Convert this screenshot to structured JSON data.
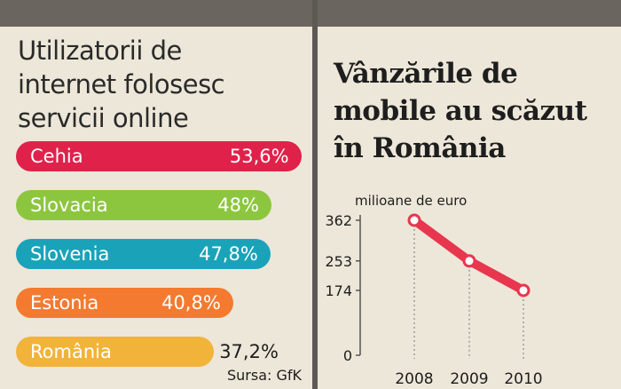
{
  "colors": {
    "background": "#ede7d9",
    "frame": "#5d5953",
    "line": "#e8364f"
  },
  "left_panel": {
    "title_lines": [
      "Utilizatorii de",
      "internet folosesc",
      "servicii online"
    ],
    "source": "Sursa: GfK"
  },
  "right_panel": {
    "title_lines": [
      "Vânzările de",
      "mobile au scăzut",
      "în România"
    ]
  },
  "chart_data": [
    {
      "type": "bar",
      "orientation": "horizontal",
      "categories": [
        "Cehia",
        "Slovacia",
        "Slovenia",
        "Estonia",
        "România"
      ],
      "values": [
        53.6,
        48,
        47.8,
        40.8,
        37.2
      ],
      "value_labels": [
        "53,6%",
        "48%",
        "47,8%",
        "40,8%",
        "37,2%"
      ],
      "colors": [
        "#e0224a",
        "#8cc63f",
        "#1aa3b8",
        "#f47a2f",
        "#f2b33a"
      ],
      "title": "Utilizatorii de internet folosesc servicii online",
      "source": "Sursa: GfK"
    },
    {
      "type": "line",
      "title": "Vânzările de mobile au scăzut în România",
      "ylabel": "milioane de euro",
      "x": [
        "2008",
        "2009",
        "2010"
      ],
      "y": [
        362,
        253,
        174
      ],
      "yticks": [
        0,
        174,
        253,
        362
      ],
      "ylim": [
        0,
        362
      ],
      "series": [
        {
          "values": [
            362,
            253,
            174
          ],
          "color": "#e8364f"
        }
      ]
    }
  ]
}
